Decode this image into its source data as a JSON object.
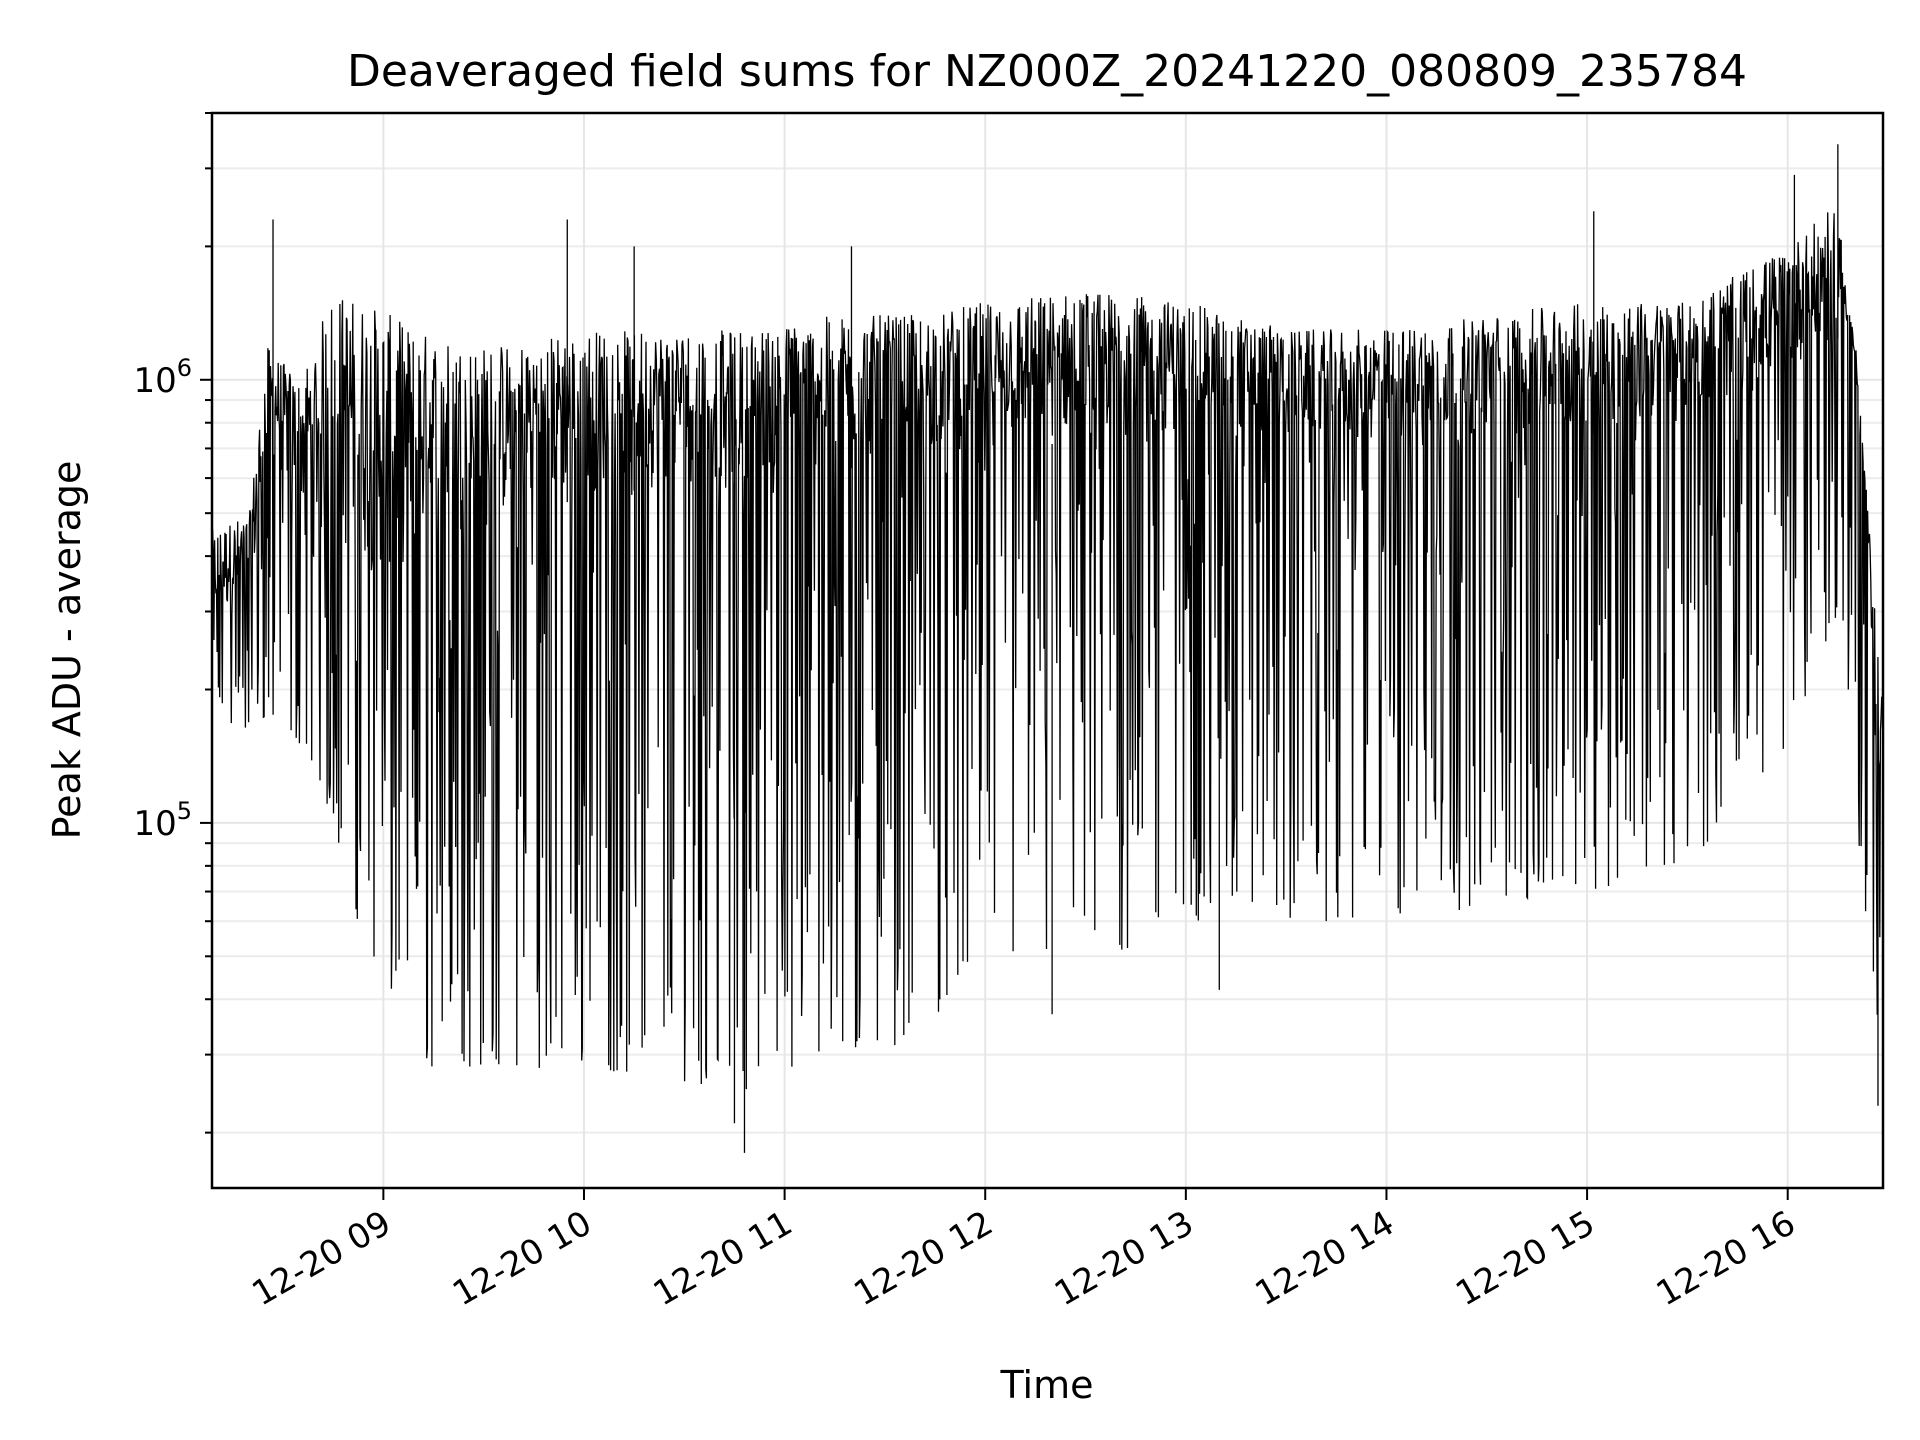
{
  "chart_data": {
    "type": "line",
    "title": "Deaveraged field sums for NZ000Z_20241220_080809_235784",
    "xlabel": "Time",
    "ylabel": "Peak ADU - average",
    "y_scale": "log",
    "ylim": [
      15000,
      4000000
    ],
    "xlim": [
      "2024-12-20 08:08:45",
      "2024-12-20 16:28:30"
    ],
    "x_ticks": [
      {
        "time": "2024-12-20 09:00",
        "label": "12-20 09"
      },
      {
        "time": "2024-12-20 10:00",
        "label": "12-20 10"
      },
      {
        "time": "2024-12-20 11:00",
        "label": "12-20 11"
      },
      {
        "time": "2024-12-20 12:00",
        "label": "12-20 12"
      },
      {
        "time": "2024-12-20 13:00",
        "label": "12-20 13"
      },
      {
        "time": "2024-12-20 14:00",
        "label": "12-20 14"
      },
      {
        "time": "2024-12-20 15:00",
        "label": "12-20 15"
      },
      {
        "time": "2024-12-20 16:00",
        "label": "12-20 16"
      }
    ],
    "y_ticks": [
      {
        "value": 100000,
        "base": "10",
        "exp": "5"
      },
      {
        "value": 1000000,
        "base": "10",
        "exp": "6"
      }
    ],
    "grid": true,
    "grid_minor": true,
    "line_color": "#000000",
    "envelope": [
      {
        "t": "2024-12-20 08:09",
        "low": 180000,
        "high": 460000
      },
      {
        "t": "2024-12-20 08:20",
        "low": 150000,
        "high": 500000
      },
      {
        "t": "2024-12-20 08:25",
        "low": 170000,
        "high": 1200000
      },
      {
        "t": "2024-12-20 08:35",
        "low": 150000,
        "high": 1000000
      },
      {
        "t": "2024-12-20 08:45",
        "low": 100000,
        "high": 1600000
      },
      {
        "t": "2024-12-20 08:55",
        "low": 50000,
        "high": 1500000
      },
      {
        "t": "2024-12-20 09:10",
        "low": 28000,
        "high": 1300000
      },
      {
        "t": "2024-12-20 09:30",
        "low": 28000,
        "high": 1200000
      },
      {
        "t": "2024-12-20 10:00",
        "low": 28000,
        "high": 1300000
      },
      {
        "t": "2024-12-20 10:30",
        "low": 26000,
        "high": 1300000
      },
      {
        "t": "2024-12-20 10:50",
        "low": 25000,
        "high": 1300000
      },
      {
        "t": "2024-12-20 11:15",
        "low": 28000,
        "high": 1400000
      },
      {
        "t": "2024-12-20 11:40",
        "low": 33000,
        "high": 1400000
      },
      {
        "t": "2024-12-20 12:00",
        "low": 50000,
        "high": 1500000
      },
      {
        "t": "2024-12-20 12:30",
        "low": 45000,
        "high": 1600000
      },
      {
        "t": "2024-12-20 13:00",
        "low": 60000,
        "high": 1500000
      },
      {
        "t": "2024-12-20 13:30",
        "low": 60000,
        "high": 1300000
      },
      {
        "t": "2024-12-20 14:00",
        "low": 60000,
        "high": 1300000
      },
      {
        "t": "2024-12-20 14:30",
        "low": 65000,
        "high": 1400000
      },
      {
        "t": "2024-12-20 15:00",
        "low": 70000,
        "high": 1500000
      },
      {
        "t": "2024-12-20 15:30",
        "low": 80000,
        "high": 1500000
      },
      {
        "t": "2024-12-20 16:00",
        "low": 150000,
        "high": 2000000
      },
      {
        "t": "2024-12-20 16:15",
        "low": 300000,
        "high": 2500000
      },
      {
        "t": "2024-12-20 16:22",
        "low": 70000,
        "high": 800000
      },
      {
        "t": "2024-12-20 16:28",
        "low": 25000,
        "high": 200000
      }
    ],
    "median": [
      {
        "t": "2024-12-20 08:09",
        "value": 280000
      },
      {
        "t": "2024-12-20 08:20",
        "value": 300000
      },
      {
        "t": "2024-12-20 08:27",
        "value": 650000
      },
      {
        "t": "2024-12-20 08:40",
        "value": 400000
      },
      {
        "t": "2024-12-20 09:00",
        "value": 350000
      },
      {
        "t": "2024-12-20 10:00",
        "value": 550000
      },
      {
        "t": "2024-12-20 11:00",
        "value": 600000
      },
      {
        "t": "2024-12-20 12:00",
        "value": 700000
      },
      {
        "t": "2024-12-20 13:00",
        "value": 750000
      },
      {
        "t": "2024-12-20 14:00",
        "value": 700000
      },
      {
        "t": "2024-12-20 15:00",
        "value": 750000
      },
      {
        "t": "2024-12-20 15:30",
        "value": 800000
      },
      {
        "t": "2024-12-20 16:10",
        "value": 1100000
      },
      {
        "t": "2024-12-20 16:20",
        "value": 1400000
      },
      {
        "t": "2024-12-20 16:28",
        "value": 100000
      }
    ],
    "spikes": [
      {
        "t": "2024-12-20 08:27",
        "value": 2300000
      },
      {
        "t": "2024-12-20 09:55",
        "value": 2300000
      },
      {
        "t": "2024-12-20 10:15",
        "value": 2000000
      },
      {
        "t": "2024-12-20 11:20",
        "value": 2000000
      },
      {
        "t": "2024-12-20 15:02",
        "value": 2400000
      },
      {
        "t": "2024-12-20 16:02",
        "value": 2900000
      },
      {
        "t": "2024-12-20 16:15",
        "value": 3400000
      },
      {
        "t": "2024-12-20 10:48",
        "value": 18000
      },
      {
        "t": "2024-12-20 10:45",
        "value": 21000
      },
      {
        "t": "2024-12-20 16:27",
        "value": 23000
      },
      {
        "t": "2024-12-20 13:10",
        "value": 42000
      },
      {
        "t": "2024-12-20 12:20",
        "value": 37000
      }
    ]
  }
}
